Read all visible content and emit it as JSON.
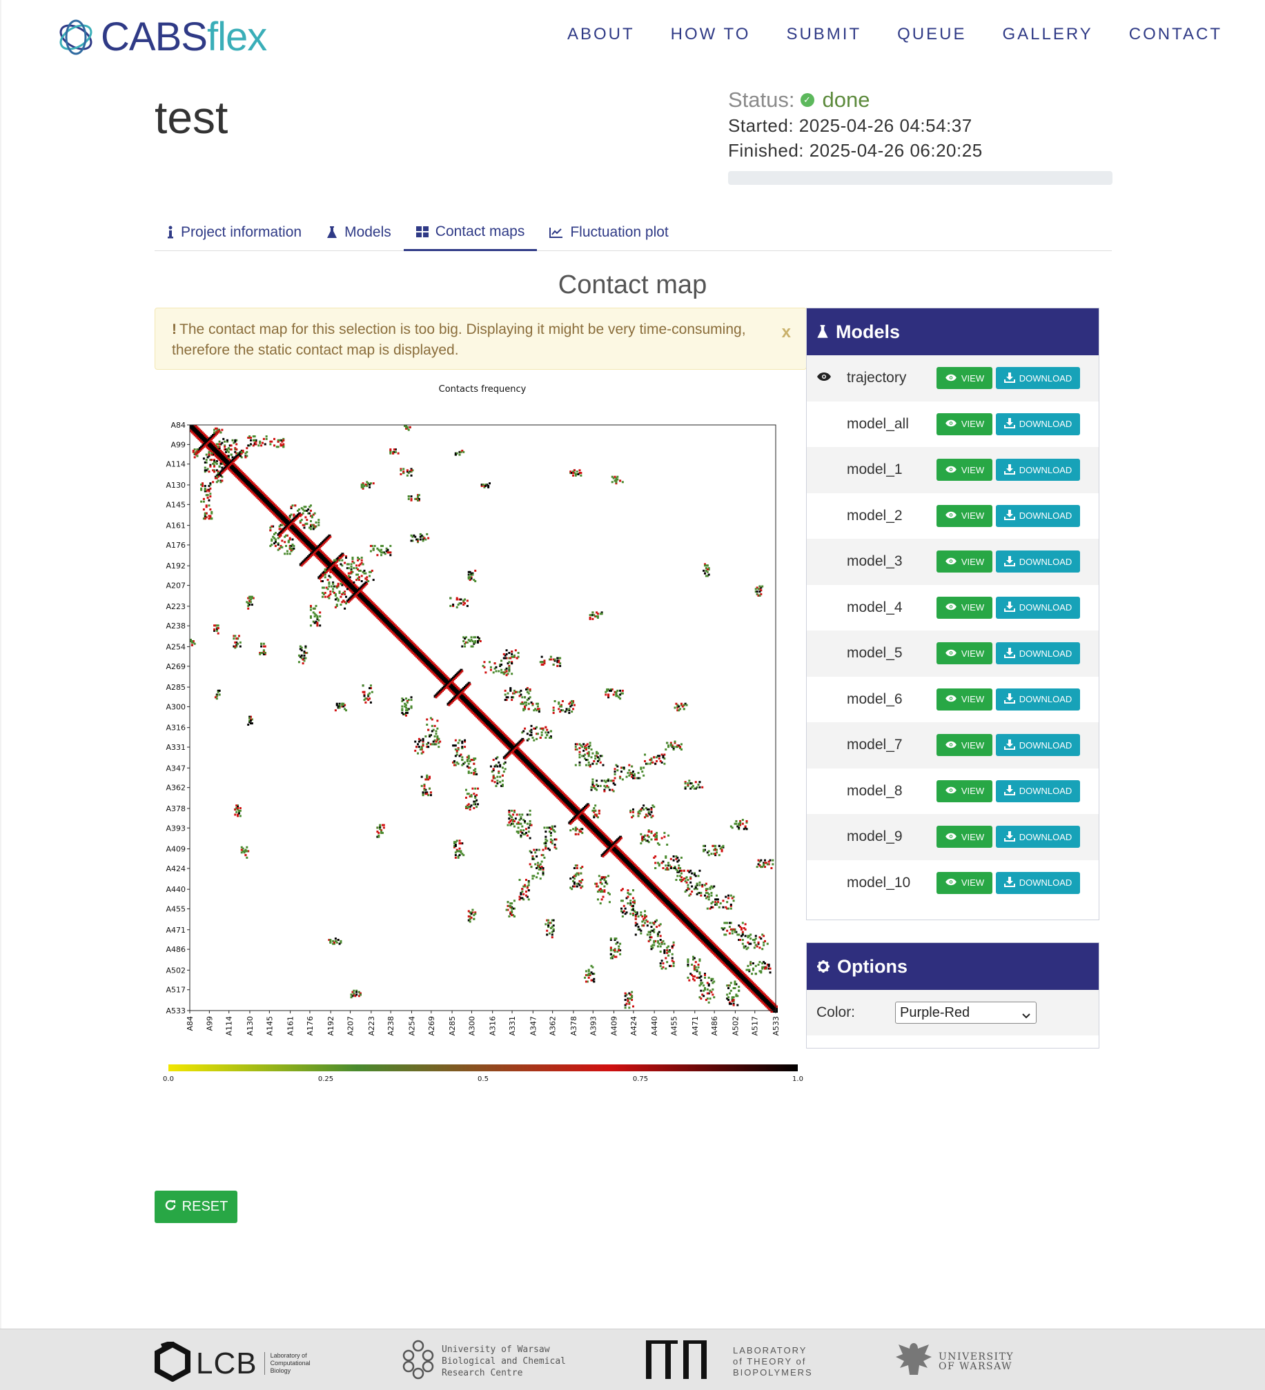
{
  "brand": {
    "part1": "CABS",
    "part2": "flex"
  },
  "nav": [
    "ABOUT",
    "HOW TO",
    "SUBMIT",
    "QUEUE",
    "GALLERY",
    "CONTACT"
  ],
  "project": {
    "title": "test",
    "status_label": "Status:",
    "status_value": "done",
    "started": "Started: 2025-04-26 04:54:37",
    "finished": "Finished: 2025-04-26 06:20:25"
  },
  "tabs": [
    {
      "label": "Project information",
      "icon": "info-icon"
    },
    {
      "label": "Models",
      "icon": "flask-icon"
    },
    {
      "label": "Contact maps",
      "icon": "grid-icon",
      "active": true
    },
    {
      "label": "Fluctuation plot",
      "icon": "line-chart-icon"
    }
  ],
  "section_title": "Contact map",
  "alert": {
    "mark": "!",
    "text": "The contact map for this selection is too big. Displaying it might be very time-consuming, therefore the static contact map is displayed.",
    "close": "x"
  },
  "chart_data": {
    "type": "heatmap",
    "title": "Contacts frequency",
    "tick_labels": [
      "A84",
      "A99",
      "A114",
      "A130",
      "A145",
      "A161",
      "A176",
      "A192",
      "A207",
      "A223",
      "A238",
      "A254",
      "A269",
      "A285",
      "A300",
      "A316",
      "A331",
      "A347",
      "A362",
      "A378",
      "A393",
      "A409",
      "A424",
      "A440",
      "A455",
      "A471",
      "A486",
      "A502",
      "A517",
      "A533"
    ],
    "residue_range": [
      84,
      533
    ],
    "colorbar": {
      "ticks": [
        "0.0",
        "0.25",
        "0.5",
        "0.75",
        "1.0"
      ],
      "range": [
        0,
        1
      ],
      "colors": [
        "#f2e600",
        "#4a8a2e",
        "#d01010",
        "#000000"
      ]
    },
    "diagonal": "symmetric contact map, dense black diagonal"
  },
  "models_panel": {
    "title": "Models",
    "view_label": "VIEW",
    "download_label": "DOWNLOAD",
    "items": [
      "trajectory",
      "model_all",
      "model_1",
      "model_2",
      "model_3",
      "model_4",
      "model_5",
      "model_6",
      "model_7",
      "model_8",
      "model_9",
      "model_10"
    ]
  },
  "options_panel": {
    "title": "Options",
    "color_label": "Color:",
    "color_value": "Purple-Red"
  },
  "reset_label": "RESET",
  "footer": {
    "lcb": "LCB",
    "lcb_sub": [
      "Laboratory of",
      "Computational",
      "Biology"
    ],
    "uw_bcrc": [
      "University of Warsaw",
      "Biological and Chemical",
      "Research Centre"
    ],
    "ltb": [
      "LABORATORY",
      "of THEORY of",
      "BIOPOLYMERS"
    ],
    "uw": [
      "UNIVERSITY",
      "OF WARSAW"
    ]
  },
  "colors": {
    "brand_dark": "#2f3a86",
    "brand_teal": "#3aaeb8",
    "panel_head": "#2f2f7e",
    "view_btn": "#28a745",
    "download_btn": "#17a2b8"
  }
}
